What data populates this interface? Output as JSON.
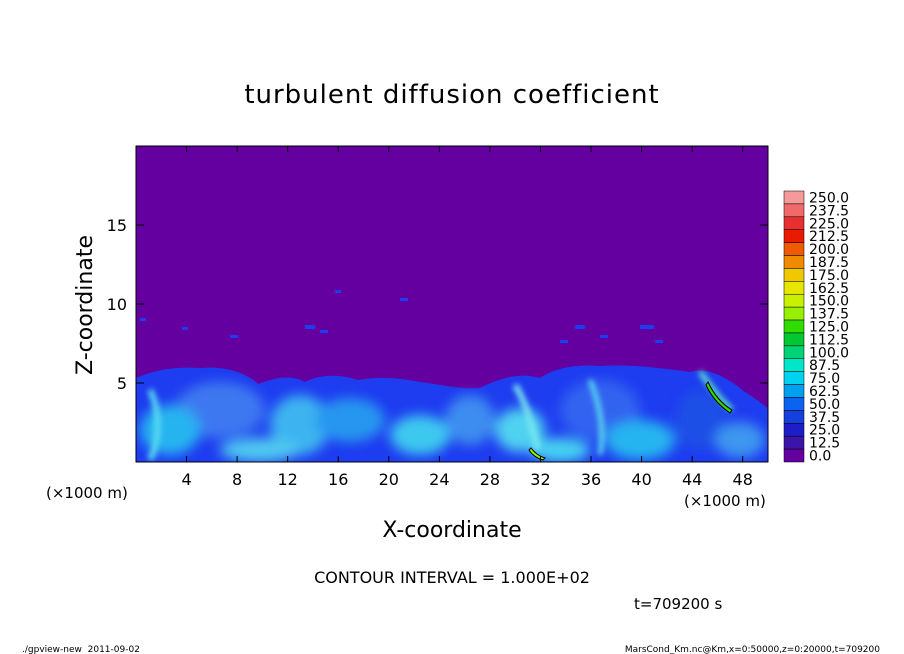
{
  "chart_data": {
    "type": "heatmap",
    "title": "turbulent diffusion coefficient",
    "xlabel": "X-coordinate",
    "ylabel": "Z-coordinate",
    "x_unit": "(×1000 m)",
    "y_unit": "(×1000 m)",
    "xlim": [
      0,
      50
    ],
    "ylim": [
      0,
      20
    ],
    "x_ticks": [
      4,
      8,
      12,
      16,
      20,
      24,
      28,
      32,
      36,
      40,
      44,
      48
    ],
    "y_ticks": [
      5,
      10,
      15
    ],
    "contour_interval": "CONTOUR INTERVAL = 1.000E+02",
    "time_label": "t=709200 s",
    "colorbar": {
      "labels": [
        "250.0",
        "237.5",
        "225.0",
        "212.5",
        "200.0",
        "187.5",
        "175.0",
        "162.5",
        "150.0",
        "137.5",
        "125.0",
        "112.5",
        "100.0",
        "87.5",
        "75.0",
        "62.5",
        "50.0",
        "37.5",
        "25.0",
        "12.5",
        "0.0"
      ],
      "colors": [
        "#f49a9a",
        "#f06a6a",
        "#e83030",
        "#e81a00",
        "#f05a00",
        "#f08a00",
        "#f0c800",
        "#e6e600",
        "#c8f000",
        "#96f000",
        "#32dc00",
        "#00c832",
        "#00d278",
        "#00e6c8",
        "#00d2f0",
        "#00a0f0",
        "#0a64f0",
        "#1440dc",
        "#1e1ec8",
        "#3c14a8",
        "#6400a0"
      ]
    },
    "background_value": "0.0",
    "footer_left": "./gpview-new  2011-09-02",
    "footer_right": "MarsCond_Km.nc@Km,x=0:50000,z=0:20000,t=709200"
  },
  "colors": {
    "background_field": "#6400a0",
    "turbulent_layer": "#1e3cf0",
    "high_values": "#00d2f0"
  }
}
